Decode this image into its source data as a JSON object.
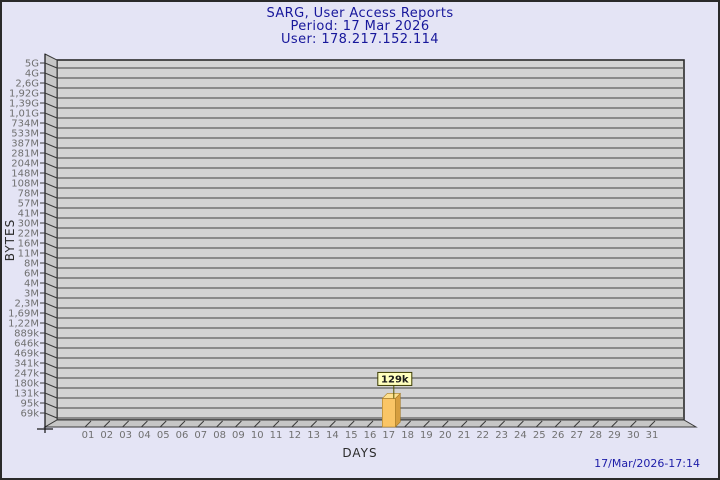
{
  "header": {
    "title": "SARG, User Access Reports",
    "period_line": "Period: 17 Mar 2026",
    "user_line": "User: 178.217.152.114"
  },
  "footer": {
    "timestamp": "17/Mar/2026-17:14"
  },
  "chart_data": {
    "type": "bar",
    "title": "SARG, User Access Reports",
    "subtitle": "Period: 17 Mar 2026",
    "xlabel": "DAYS",
    "ylabel": "BYTES",
    "y_scale": "log-geometric",
    "y_base_value": 69000,
    "y_top_value": 5000000000,
    "y_tick_labels": [
      "5G",
      "4G",
      "2,6G",
      "1,92G",
      "1,39G",
      "1,01G",
      "734M",
      "533M",
      "387M",
      "281M",
      "204M",
      "148M",
      "108M",
      "78M",
      "57M",
      "41M",
      "30M",
      "22M",
      "16M",
      "11M",
      "8M",
      "6M",
      "4M",
      "3M",
      "2,3M",
      "1,69M",
      "1,22M",
      "889k",
      "646k",
      "469k",
      "341k",
      "247k",
      "180k",
      "131k",
      "95k",
      "69k"
    ],
    "categories": [
      "01",
      "02",
      "03",
      "04",
      "05",
      "06",
      "07",
      "08",
      "09",
      "10",
      "11",
      "12",
      "13",
      "14",
      "15",
      "16",
      "17",
      "18",
      "19",
      "20",
      "21",
      "22",
      "23",
      "24",
      "25",
      "26",
      "27",
      "28",
      "29",
      "30",
      "31"
    ],
    "values": [
      0,
      0,
      0,
      0,
      0,
      0,
      0,
      0,
      0,
      0,
      0,
      0,
      0,
      0,
      0,
      0,
      129000,
      0,
      0,
      0,
      0,
      0,
      0,
      0,
      0,
      0,
      0,
      0,
      0,
      0,
      0
    ],
    "value_labels": {
      "17": "129k"
    },
    "grid": "horizontal-lines",
    "legend_position": "none"
  },
  "colors": {
    "background": "#E4E4F5",
    "border": "#2A2A2A",
    "title_text": "#17179B",
    "timestamp_text": "#1C1CA8",
    "axis_title_text": "#2B2B2B",
    "tick_text": "#707070",
    "plot_band": "#D3D3D3",
    "grid_line": "#5E5E5E",
    "plot_border": "#2A2A2A",
    "wall_fill": "#C6C6C6",
    "wall_edge": "#3A3A3A",
    "bar_front": "#FAC566",
    "bar_side": "#D69E3F",
    "bar_top": "#FFE18F",
    "bar_edge": "#A67C28",
    "value_box_bg": "#FFFFBF",
    "value_box_border": "#3B3B00",
    "value_text": "#1A1A1A"
  }
}
